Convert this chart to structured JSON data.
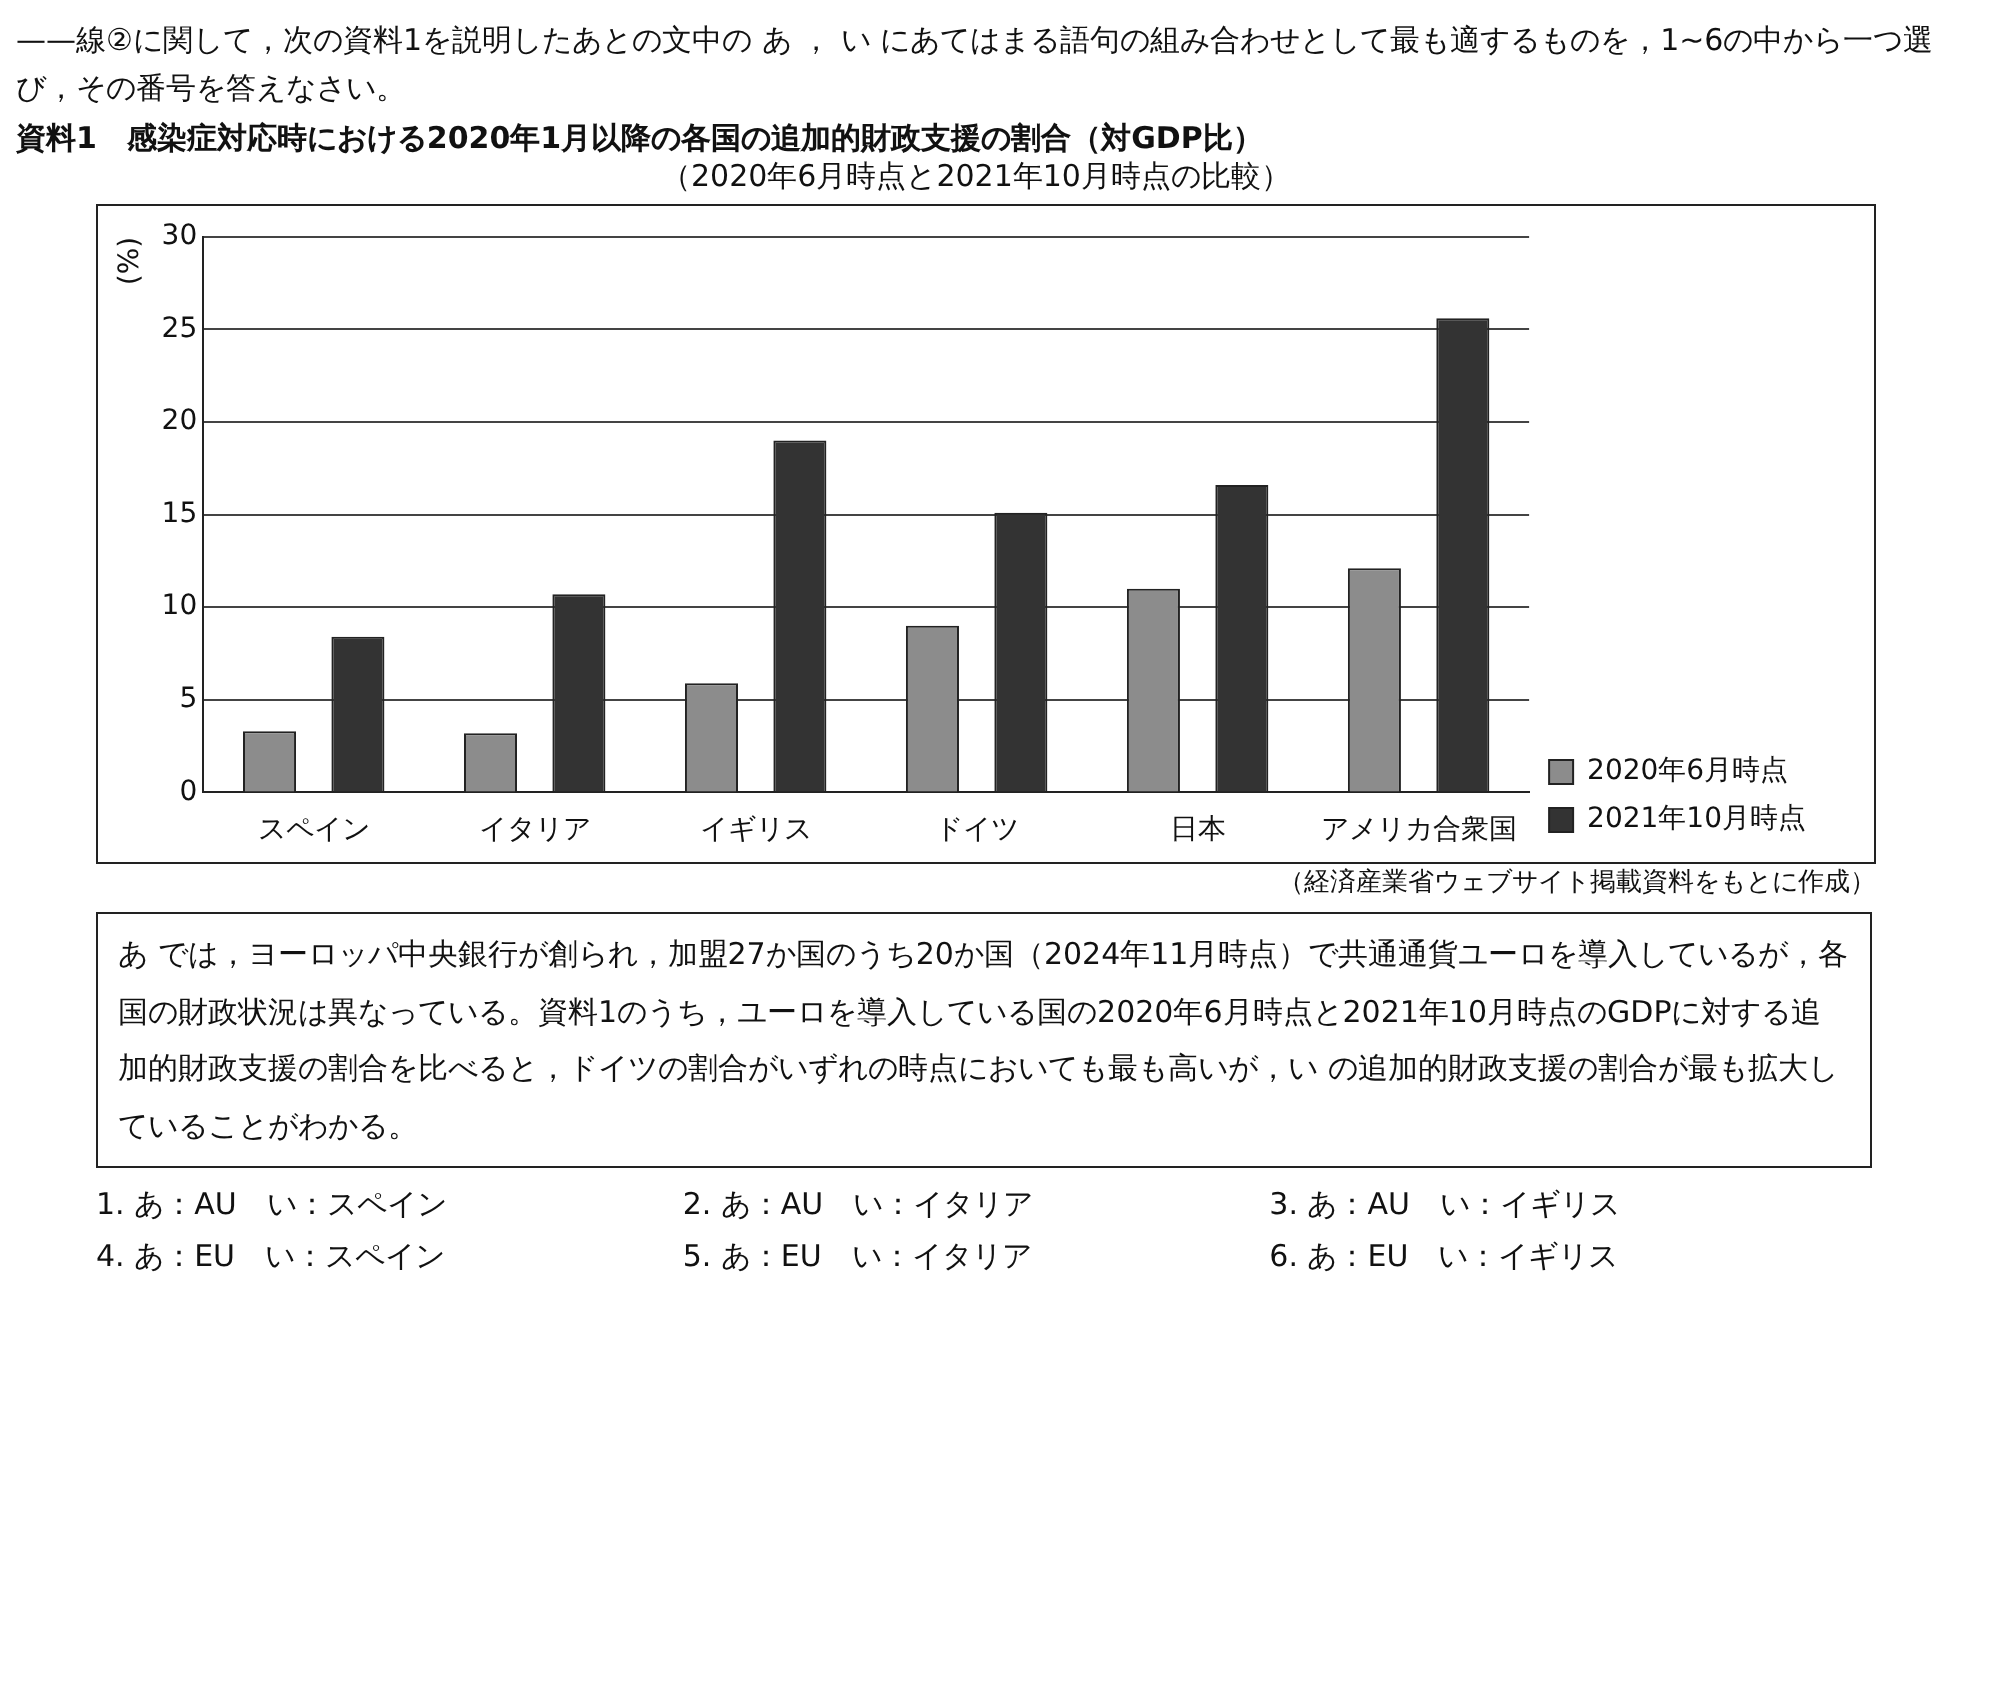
{
  "chart_data": {
    "type": "bar",
    "title": "資料1　感染症対応時における2020年1月以降の各国の追加的財政支援の割合（対GDP比）",
    "subtitle": "（2020年6月時点と2021年10月時点の比較）",
    "ylabel": "(%)",
    "categories": [
      "スペイン",
      "イタリア",
      "イギリス",
      "ドイツ",
      "日本",
      "アメリカ合衆国"
    ],
    "series": [
      {
        "name": "2020年6月時点",
        "color": "#8c8c8c",
        "values": [
          3.3,
          3.2,
          5.9,
          9.0,
          11.0,
          12.1
        ]
      },
      {
        "name": "2021年10月時点",
        "color": "#333333",
        "values": [
          8.4,
          10.7,
          19.0,
          15.1,
          16.6,
          25.6
        ]
      }
    ],
    "ylim": [
      0,
      30
    ],
    "yticks": [
      0,
      5,
      10,
      15,
      20,
      25,
      30
    ],
    "grid": "y",
    "legend": "bottom right",
    "annotations": [
      "——線②に関して，次の資料1を説明したあとの文中の あ ， い にあてはまる語句の組み合わせとして最も適するものを，1~6の中から一つ選び，その番号を答えなさい。",
      "（経済産業省ウェブサイト掲載資料をもとに作成）",
      "あ では，ヨーロッパ中央銀行が創られ，加盟27か国のうち20か国（2024年11月時点）で共通通貨ユーロを導入しているが，各国の財政状況は異なっている。資料1のうち，ユーロを導入している国の2020年6月時点と2021年10月時点のGDPに対する追加的財政支援の割合を比べると，ドイツの割合がいずれの時点においても最も高いが，い の追加的財政支援の割合が最も拡大していることがわかる。",
      "1. あ：AU　い：スペイン",
      "2. あ：AU　い：イタリア",
      "3. あ：AU　い：イギリス",
      "4. あ：EU　い：スペイン",
      "5. あ：EU　い：イタリア",
      "6. あ：EU　い：イギリス"
    ]
  }
}
